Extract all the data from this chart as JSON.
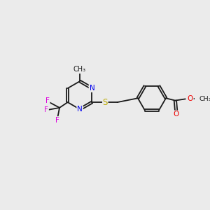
{
  "background_color": "#ebebeb",
  "bond_color": "#1a1a1a",
  "N_color": "#0000ee",
  "S_color": "#bbaa00",
  "F_color": "#dd00dd",
  "O_color": "#ee0000",
  "figsize": [
    3.0,
    3.0
  ],
  "dpi": 100,
  "pcx": 4.1,
  "pcy": 5.5,
  "pr": 0.72,
  "pang": [
    90,
    30,
    -30,
    -90,
    -150,
    150
  ],
  "bcx": 7.8,
  "bcy": 5.35,
  "br": 0.72,
  "bang": [
    30,
    90,
    150,
    210,
    270,
    330
  ],
  "ch3_label": "CH₃",
  "N_label": "N",
  "S_label": "S",
  "F_label": "F",
  "O_label": "O"
}
